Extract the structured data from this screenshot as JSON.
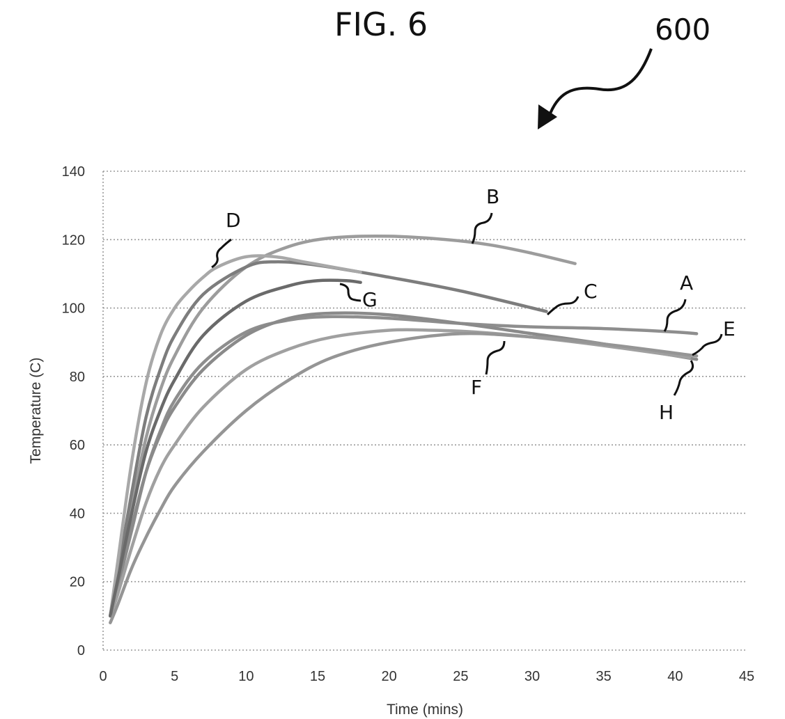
{
  "figure": {
    "title": "FIG. 6",
    "reference_numeral": "600"
  },
  "chart_data": {
    "type": "line",
    "title": "",
    "xlabel": "Time (mins)",
    "ylabel": "Temperature (C)",
    "xlim": [
      0,
      45
    ],
    "ylim": [
      0,
      140
    ],
    "xticks": [
      0,
      5,
      10,
      15,
      20,
      25,
      30,
      35,
      40,
      45
    ],
    "yticks": [
      0,
      20,
      40,
      60,
      80,
      100,
      120,
      140
    ],
    "grid": "horizontal-dotted",
    "series": [
      {
        "name": "A",
        "x": [
          0.5,
          1,
          2,
          3,
          4,
          5,
          7,
          10,
          13,
          16,
          20,
          25,
          30,
          35,
          40,
          41.5
        ],
        "y": [
          10,
          18,
          35,
          52,
          64,
          73,
          84,
          93,
          96.5,
          97.5,
          97,
          95.5,
          94.5,
          94,
          93,
          92.5
        ]
      },
      {
        "name": "B",
        "x": [
          0.5,
          1,
          2,
          3,
          4,
          5,
          7,
          10,
          13,
          16,
          20,
          24,
          27,
          30,
          33
        ],
        "y": [
          10,
          20,
          42,
          62,
          76,
          86,
          100,
          112,
          118,
          120.5,
          121,
          120,
          118.5,
          116,
          113
        ]
      },
      {
        "name": "C",
        "x": [
          0.5,
          1,
          2,
          3,
          4,
          5,
          7,
          10,
          12,
          15,
          20,
          25,
          31
        ],
        "y": [
          10,
          22,
          46,
          68,
          82,
          92,
          104,
          112,
          113.5,
          112.5,
          109,
          105,
          99
        ]
      },
      {
        "name": "D",
        "x": [
          0.5,
          1,
          2,
          3,
          4,
          5,
          6,
          7,
          8,
          10,
          12,
          14,
          16,
          18
        ],
        "y": [
          10,
          25,
          55,
          78,
          92,
          100,
          105,
          109,
          112,
          115,
          115,
          113.5,
          112,
          110.5
        ]
      },
      {
        "name": "E",
        "x": [
          0.5,
          1,
          2,
          3,
          4,
          5,
          7,
          10,
          13,
          16,
          20,
          25,
          30,
          35,
          41.5
        ],
        "y": [
          10,
          18,
          36,
          52,
          63,
          71,
          82,
          92,
          97,
          98.5,
          98,
          95.5,
          92.5,
          89.5,
          85
        ]
      },
      {
        "name": "F",
        "x": [
          0.5,
          1,
          2,
          3,
          4,
          5,
          7,
          10,
          13,
          16,
          20,
          23,
          26,
          30,
          35,
          41
        ],
        "y": [
          10,
          16,
          30,
          43,
          53,
          60,
          71,
          82,
          88,
          91.5,
          93.5,
          93.5,
          93,
          91.5,
          89,
          85.5
        ]
      },
      {
        "name": "G",
        "x": [
          0.5,
          1,
          2,
          3,
          4,
          5,
          7,
          10,
          13,
          15,
          17,
          18
        ],
        "y": [
          10,
          20,
          40,
          58,
          70,
          79,
          92,
          102,
          106.5,
          108,
          108,
          107.5
        ]
      },
      {
        "name": "H",
        "x": [
          0.5,
          1,
          2,
          3,
          4,
          5,
          7,
          10,
          13,
          16,
          20,
          25,
          30,
          35,
          41.5
        ],
        "y": [
          8,
          13,
          24,
          33,
          41,
          48,
          58,
          70,
          79,
          85.5,
          90,
          92.5,
          91.5,
          89.5,
          86
        ]
      }
    ]
  }
}
